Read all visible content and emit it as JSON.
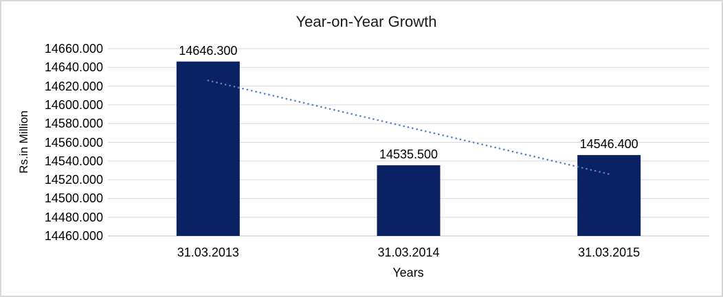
{
  "window": {
    "background": "#ffffff",
    "border_color": "#d9d9d9"
  },
  "colors": {
    "bar": "#0a2263",
    "trendline": "#4c84cc",
    "gridline": "#d9d9d9",
    "axis_line": "#bfbfbf",
    "text": "#000000",
    "title_text": "#1a1a1a"
  },
  "chart_data": {
    "type": "bar",
    "title": "Year-on-Year Growth",
    "categories": [
      "31.03.2013",
      "31.03.2014",
      "31.03.2015"
    ],
    "values": [
      14646.3,
      14535.5,
      14546.4
    ],
    "data_labels": [
      "14646.300",
      "14535.500",
      "14546.400"
    ],
    "xlabel": "Years",
    "ylabel": "Rs.in Million",
    "ylim": [
      14460,
      14660
    ],
    "ytick_step": 20,
    "ytick_labels": [
      "14660.000",
      "14640.000",
      "14620.000",
      "14600.000",
      "14580.000",
      "14560.000",
      "14540.000",
      "14520.000",
      "14500.000",
      "14480.000",
      "14460.000"
    ],
    "grid": true,
    "legend": "none",
    "trendline": {
      "type": "linear",
      "style": "dotted",
      "series_span": [
        "31.03.2013",
        "31.03.2015"
      ]
    }
  }
}
